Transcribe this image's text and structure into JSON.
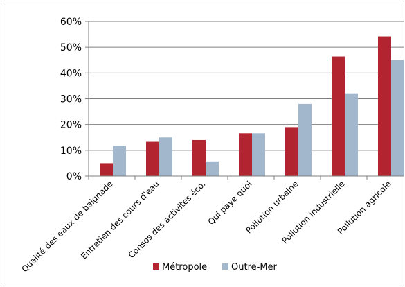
{
  "chart_data": {
    "type": "bar",
    "categories": [
      "Qualité des eaux de baignade",
      "Entretien des cours d'eau",
      "Consos des activités éco.",
      "Qui paye quoi",
      "Pollution urbaine",
      "Pollution industrielle",
      "Pollution agricole"
    ],
    "series": [
      {
        "name": "Métropole",
        "color": "#b22530",
        "values": [
          5,
          13.3,
          14,
          16.6,
          19,
          46.4,
          54.2
        ]
      },
      {
        "name": "Outre-Mer",
        "color": "#a2b7cc",
        "values": [
          11.8,
          15,
          5.7,
          16.6,
          28,
          32.1,
          45
        ]
      }
    ],
    "ylim": [
      0,
      60
    ],
    "y_ticks": [
      "0%",
      "10%",
      "20%",
      "30%",
      "40%",
      "50%",
      "60%"
    ],
    "grid": true,
    "legend_position": "bottom"
  }
}
